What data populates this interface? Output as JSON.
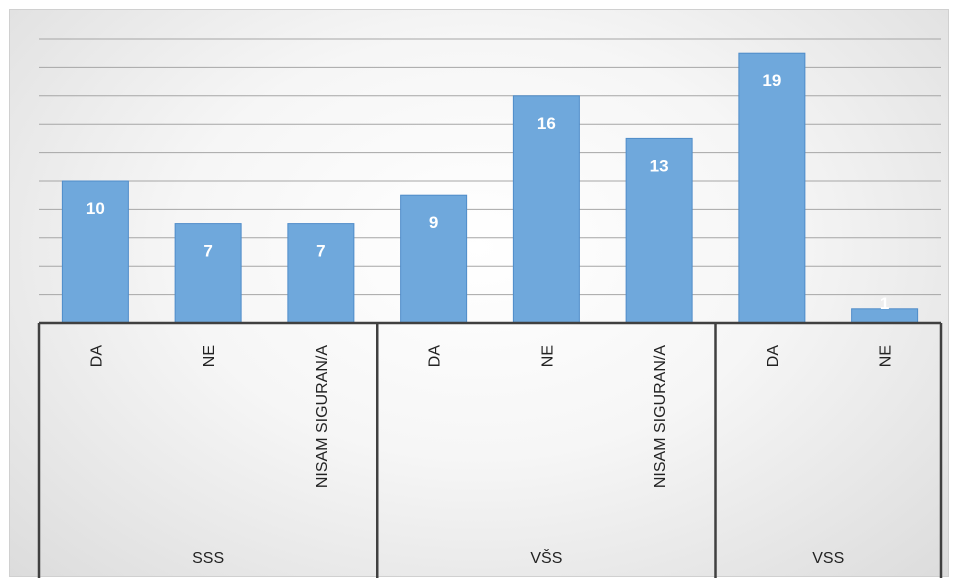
{
  "chart_data": {
    "type": "bar",
    "groups": [
      {
        "label": "SSS",
        "categories": [
          "DA",
          "NE",
          "NISAM SIGURAN/A"
        ],
        "values": [
          10,
          7,
          7
        ]
      },
      {
        "label": "VŠS",
        "categories": [
          "DA",
          "NE",
          "NISAM SIGURAN/A"
        ],
        "values": [
          9,
          16,
          13
        ]
      },
      {
        "label": "VSS",
        "categories": [
          "DA",
          "NE"
        ],
        "values": [
          19,
          1
        ]
      }
    ],
    "ylim": [
      0,
      20
    ],
    "grid": true,
    "legend": "none",
    "colors": {
      "bar": "#6fa8dc",
      "bar_edge": "#4f8cc9",
      "label": "#ffffff",
      "axis": "#404040",
      "grid": "#a6a6a6"
    }
  }
}
